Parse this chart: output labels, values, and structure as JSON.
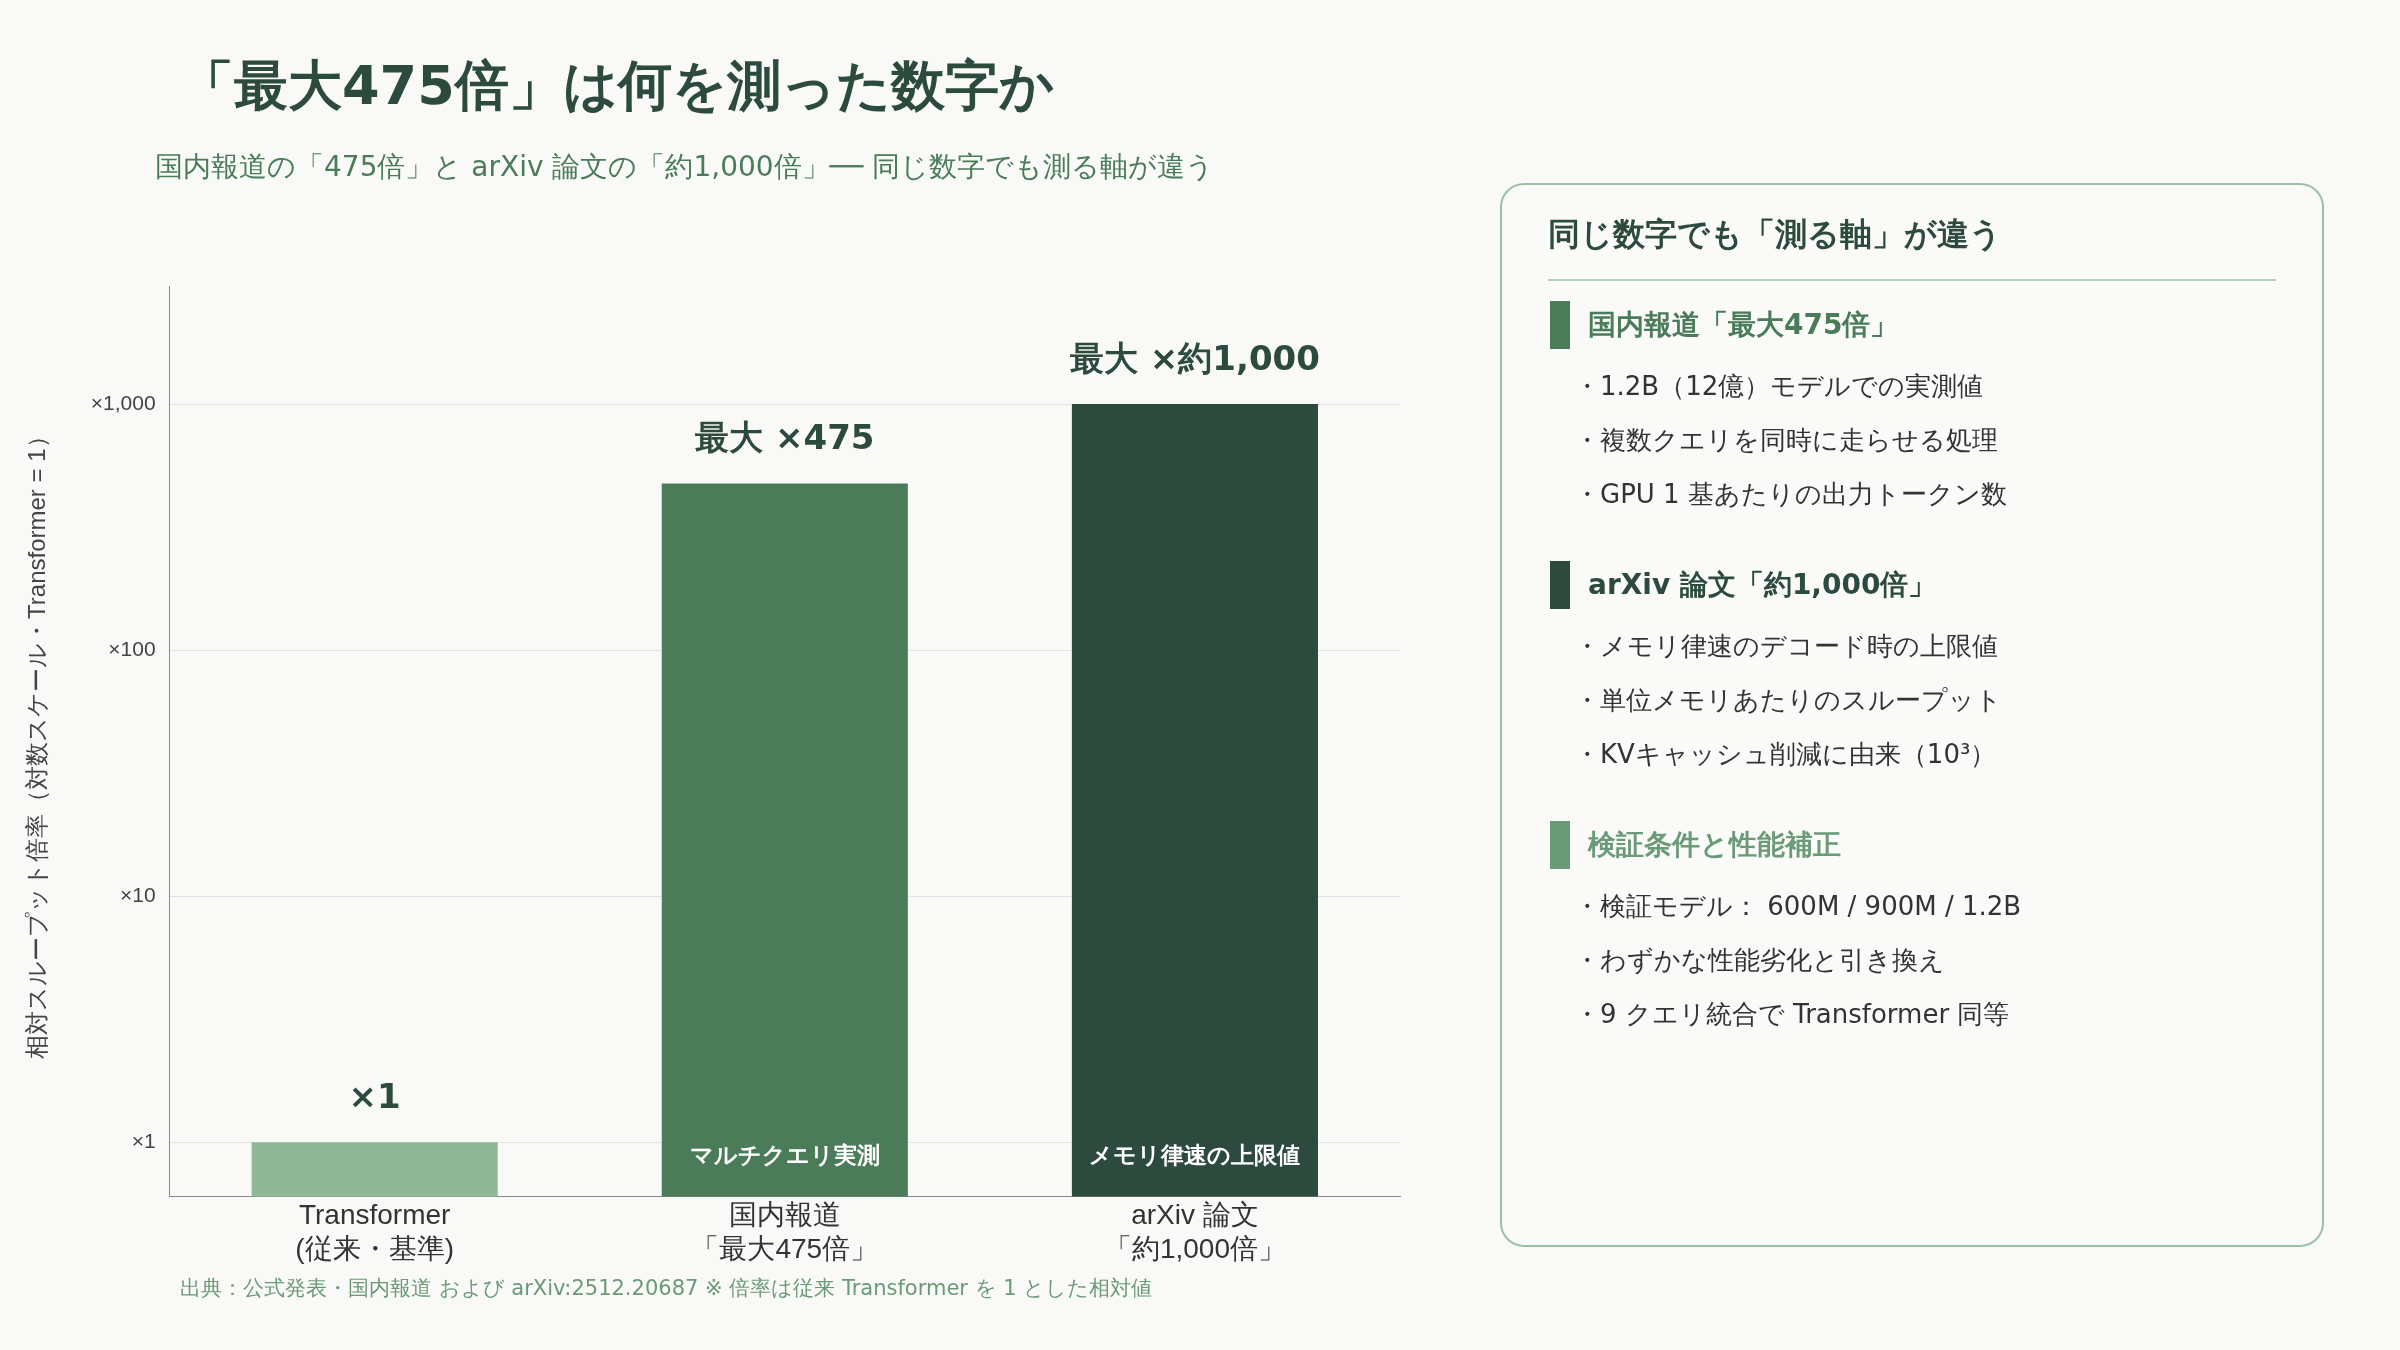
{
  "chart_data": [
    {
      "type": "bar",
      "title": "「最大475倍」は何を測った数字か",
      "subtitle": "国内報道の「475倍」と arXiv 論文の「約1,000倍」── 同じ数字でも測る軸が違う",
      "ylabel": "相対スループット倍率（対数スケール・Transformer = 1）",
      "categories": [
        "Transformer\n(従来・基準)",
        "国内報道「最大475倍」",
        "arXiv 論文「約1,000倍」"
      ],
      "values": [
        1,
        475,
        1000
      ],
      "colors": [
        "#8fb996",
        "#4a7c59",
        "#2d4a3e"
      ],
      "value_labels": [
        "×1",
        "最大 ×475",
        "最大 ×約1,000"
      ],
      "log": true,
      "ylim": [
        0.6,
        3000
      ],
      "yticks": [
        {
          "value": 1,
          "label": "×1"
        },
        {
          "value": 10,
          "label": "×10"
        },
        {
          "value": 100,
          "label": "×100"
        },
        {
          "value": 1000,
          "label": "×1,000"
        }
      ],
      "grid": "y",
      "legend": false,
      "annotations": [
        "マルチクエリ実測",
        "メモリ律速の上限値",
        "出典：公式発表・国内報道 および arXiv:2512.20687 ※ 倍率は従来 Transformer を 1 とした相対値"
      ]
    },
    {
      "type": "other",
      "title": "同じ数字でも「測る軸」が違う",
      "categories": [
        "国内報道「最大475倍」",
        "arXiv 論文「約1,000倍」",
        "検証条件と性能補正"
      ],
      "colors": [
        "#4a7c59",
        "#2d4a3e",
        "#6b9a78"
      ],
      "annotations": [
        "・1.2B（12億）モデルでの実測値",
        "・複数クエリを同時に走らせる処理",
        "・GPU 1 基あたりの出力トークン数",
        "・メモリ律速のデコード時の上限値",
        "・単位メモリあたりのスループット",
        "・KVキャッシュ削減に由来（10³）",
        "・検証モデル： 600M / 900M / 1.2B",
        "・わずかな性能劣化と引き換え",
        "・9 クエリ統合で Transformer 同等"
      ]
    }
  ]
}
